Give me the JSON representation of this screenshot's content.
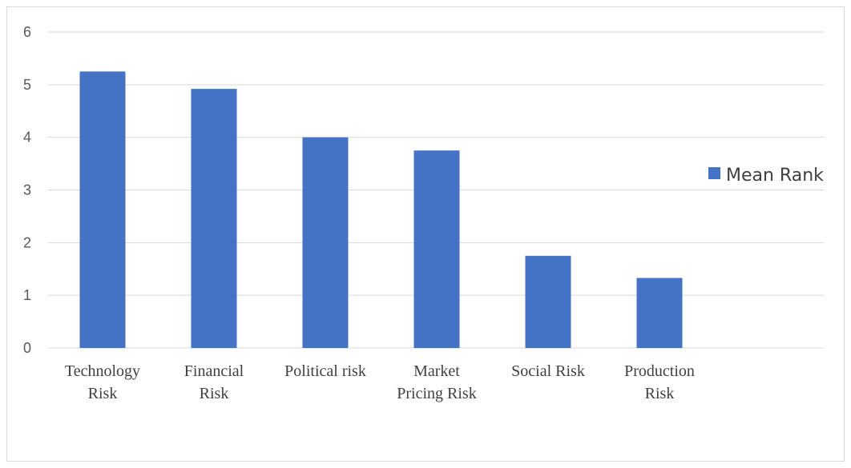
{
  "chart_data": {
    "type": "bar",
    "categories": [
      [
        "Technology",
        "Risk"
      ],
      [
        "Financial",
        "Risk"
      ],
      [
        "Political risk"
      ],
      [
        "Market",
        "Pricing Risk"
      ],
      [
        "Social Risk"
      ],
      [
        "Production",
        "Risk"
      ]
    ],
    "series": [
      {
        "name": "Mean Rank",
        "values": [
          5.25,
          4.92,
          4.0,
          3.75,
          1.75,
          1.33
        ],
        "color": "#4472c4"
      }
    ],
    "ylim": [
      0,
      6
    ],
    "yticks": [
      "0",
      "1",
      "2",
      "3",
      "4",
      "5",
      "6"
    ],
    "grid": true,
    "legend_position": "right"
  }
}
